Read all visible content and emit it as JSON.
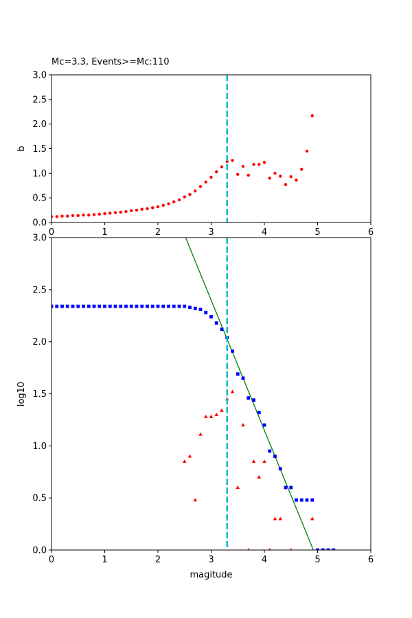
{
  "colors": {
    "b_series": "#ff0000",
    "cumulative_series": "#0000ff",
    "noncumulative_series": "#ff0000",
    "fit_line": "#008000",
    "mc_line": "#17bfbf"
  },
  "chart_data": [
    {
      "type": "scatter",
      "title": "Mc=3.3, Events>=Mc:110",
      "xlabel": "",
      "ylabel": "b",
      "xlim": [
        0,
        6
      ],
      "ylim": [
        0,
        3
      ],
      "xticks": [
        "0",
        "1",
        "2",
        "3",
        "4",
        "5",
        "6"
      ],
      "yticks": [
        "0.0",
        "0.5",
        "1.0",
        "1.5",
        "2.0",
        "2.5",
        "3.0"
      ],
      "grid": false,
      "mc_line_x": 3.3,
      "series": [
        {
          "marker": "circle",
          "color": "#ff0000",
          "points": [
            [
              0.0,
              0.12
            ],
            [
              0.1,
              0.12
            ],
            [
              0.2,
              0.13
            ],
            [
              0.3,
              0.13
            ],
            [
              0.4,
              0.14
            ],
            [
              0.5,
              0.14
            ],
            [
              0.6,
              0.15
            ],
            [
              0.7,
              0.15
            ],
            [
              0.8,
              0.16
            ],
            [
              0.9,
              0.17
            ],
            [
              1.0,
              0.18
            ],
            [
              1.1,
              0.19
            ],
            [
              1.2,
              0.2
            ],
            [
              1.3,
              0.21
            ],
            [
              1.4,
              0.22
            ],
            [
              1.5,
              0.24
            ],
            [
              1.6,
              0.25
            ],
            [
              1.7,
              0.27
            ],
            [
              1.8,
              0.28
            ],
            [
              1.9,
              0.3
            ],
            [
              2.0,
              0.32
            ],
            [
              2.1,
              0.35
            ],
            [
              2.2,
              0.38
            ],
            [
              2.3,
              0.42
            ],
            [
              2.4,
              0.46
            ],
            [
              2.5,
              0.52
            ],
            [
              2.6,
              0.57
            ],
            [
              2.7,
              0.64
            ],
            [
              2.8,
              0.73
            ],
            [
              2.9,
              0.82
            ],
            [
              3.0,
              0.92
            ],
            [
              3.1,
              1.03
            ],
            [
              3.2,
              1.13
            ],
            [
              3.3,
              1.24
            ],
            [
              3.4,
              1.26
            ],
            [
              3.5,
              0.98
            ],
            [
              3.6,
              1.14
            ],
            [
              3.7,
              0.96
            ],
            [
              3.8,
              1.18
            ],
            [
              3.9,
              1.18
            ],
            [
              4.0,
              1.22
            ],
            [
              4.1,
              0.9
            ],
            [
              4.2,
              1.0
            ],
            [
              4.3,
              0.94
            ],
            [
              4.4,
              0.77
            ],
            [
              4.5,
              0.93
            ],
            [
              4.6,
              0.86
            ],
            [
              4.7,
              1.08
            ],
            [
              4.8,
              1.45
            ],
            [
              4.9,
              2.17
            ]
          ]
        }
      ]
    },
    {
      "type": "scatter",
      "title": "",
      "xlabel": "magitude",
      "ylabel": "log10",
      "xlim": [
        0,
        6
      ],
      "ylim": [
        0,
        3
      ],
      "xticks": [
        "0",
        "1",
        "2",
        "3",
        "4",
        "5",
        "6"
      ],
      "yticks": [
        "0.0",
        "0.5",
        "1.0",
        "1.5",
        "2.0",
        "2.5",
        "3.0"
      ],
      "grid": false,
      "mc_line_x": 3.3,
      "fit_line": [
        [
          2.52,
          3.0
        ],
        [
          4.92,
          0.0
        ]
      ],
      "series": [
        {
          "marker": "square",
          "color": "#0000ff",
          "points": [
            [
              0.0,
              2.34
            ],
            [
              0.1,
              2.34
            ],
            [
              0.2,
              2.34
            ],
            [
              0.3,
              2.34
            ],
            [
              0.4,
              2.34
            ],
            [
              0.5,
              2.34
            ],
            [
              0.6,
              2.34
            ],
            [
              0.7,
              2.34
            ],
            [
              0.8,
              2.34
            ],
            [
              0.9,
              2.34
            ],
            [
              1.0,
              2.34
            ],
            [
              1.1,
              2.34
            ],
            [
              1.2,
              2.34
            ],
            [
              1.3,
              2.34
            ],
            [
              1.4,
              2.34
            ],
            [
              1.5,
              2.34
            ],
            [
              1.6,
              2.34
            ],
            [
              1.7,
              2.34
            ],
            [
              1.8,
              2.34
            ],
            [
              1.9,
              2.34
            ],
            [
              2.0,
              2.34
            ],
            [
              2.1,
              2.34
            ],
            [
              2.2,
              2.34
            ],
            [
              2.3,
              2.34
            ],
            [
              2.4,
              2.34
            ],
            [
              2.5,
              2.34
            ],
            [
              2.6,
              2.33
            ],
            [
              2.7,
              2.32
            ],
            [
              2.8,
              2.31
            ],
            [
              2.9,
              2.28
            ],
            [
              3.0,
              2.24
            ],
            [
              3.1,
              2.18
            ],
            [
              3.2,
              2.12
            ],
            [
              3.3,
              2.04
            ],
            [
              3.4,
              1.91
            ],
            [
              3.5,
              1.69
            ],
            [
              3.6,
              1.65
            ],
            [
              3.7,
              1.46
            ],
            [
              3.8,
              1.44
            ],
            [
              3.9,
              1.32
            ],
            [
              4.0,
              1.2
            ],
            [
              4.1,
              0.95
            ],
            [
              4.2,
              0.9
            ],
            [
              4.3,
              0.78
            ],
            [
              4.4,
              0.6
            ],
            [
              4.5,
              0.6
            ],
            [
              4.6,
              0.48
            ],
            [
              4.7,
              0.48
            ],
            [
              4.8,
              0.48
            ],
            [
              4.9,
              0.48
            ],
            [
              5.0,
              0.0
            ],
            [
              5.1,
              0.0
            ],
            [
              5.2,
              0.0
            ],
            [
              5.3,
              0.0
            ]
          ]
        },
        {
          "marker": "triangle",
          "color": "#ff0000",
          "points": [
            [
              2.5,
              0.85
            ],
            [
              2.6,
              0.9
            ],
            [
              2.7,
              0.48
            ],
            [
              2.8,
              1.11
            ],
            [
              2.9,
              1.28
            ],
            [
              3.0,
              1.28
            ],
            [
              3.1,
              1.3
            ],
            [
              3.2,
              1.34
            ],
            [
              3.3,
              1.45
            ],
            [
              3.4,
              1.52
            ],
            [
              3.5,
              0.6
            ],
            [
              3.6,
              1.2
            ],
            [
              3.7,
              0.0
            ],
            [
              3.8,
              0.85
            ],
            [
              3.9,
              0.7
            ],
            [
              4.0,
              0.85
            ],
            [
              4.1,
              0.0
            ],
            [
              4.2,
              0.3
            ],
            [
              4.3,
              0.3
            ],
            [
              4.5,
              0.0
            ],
            [
              4.9,
              0.3
            ]
          ]
        }
      ]
    }
  ]
}
